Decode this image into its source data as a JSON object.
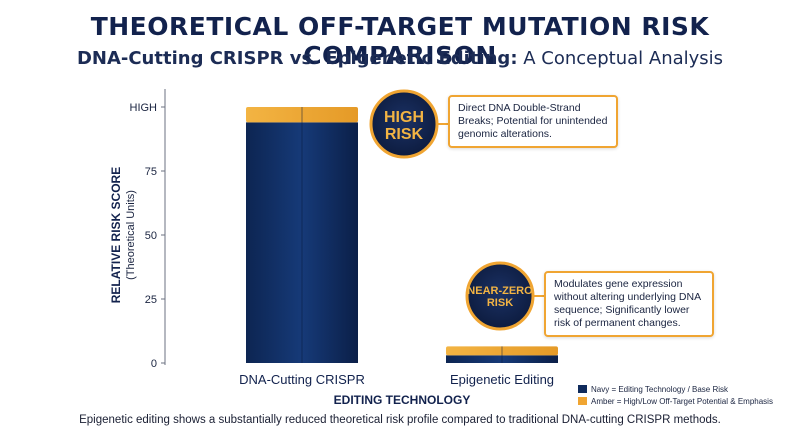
{
  "title": "THEORETICAL OFF-TARGET MUTATION RISK COMPARISON",
  "subtitle_main": "DNA-Cutting CRISPR vs. Epigenetic Editing:",
  "subtitle_rest": " A Conceptual Analysis",
  "colors": {
    "navy": "#0f2b5c",
    "amber": "#f0a532",
    "badge_bg": "#102145"
  },
  "chart_data": {
    "type": "bar",
    "title": "THEORETICAL OFF-TARGET MUTATION RISK COMPARISON",
    "ylabel": "RELATIVE RISK SCORE",
    "ylabel_sub": "(Theoretical Units)",
    "xlabel": "EDITING TECHNOLOGY",
    "ylim": [
      0,
      100
    ],
    "yticks": [
      0,
      25,
      50,
      75,
      100
    ],
    "ytick_labels": [
      "0",
      "25",
      "50",
      "75",
      "HIGH"
    ],
    "categories": [
      "DNA-Cutting CRISPR",
      "Epigenetic Editing"
    ],
    "series": [
      {
        "name": "Navy = Editing Technology / Base Risk",
        "values": [
          94,
          3
        ]
      },
      {
        "name": "Amber = High/Low Off-Target Potential & Emphasis",
        "values": [
          6,
          3.5
        ]
      }
    ],
    "legend": "bottom-right",
    "grid": false
  },
  "badges": [
    {
      "text": "HIGH RISK",
      "line1": "HIGH",
      "line2": "RISK"
    },
    {
      "text": "NEAR-ZERO RISK",
      "line1": "NEAR-ZERO",
      "line2": "RISK"
    }
  ],
  "callouts": [
    "Direct DNA Double-Strand Breaks; Potential for unintended genomic alterations.",
    "Modulates gene expression without altering underlying DNA sequence; Significantly lower risk of permanent changes."
  ],
  "legend_items": [
    "Navy = Editing Technology / Base Risk",
    "Amber = High/Low Off-Target Potential & Emphasis"
  ],
  "footnote": "Epigenetic editing shows a substantially reduced theoretical risk profile compared to traditional DNA-cutting CRISPR methods."
}
